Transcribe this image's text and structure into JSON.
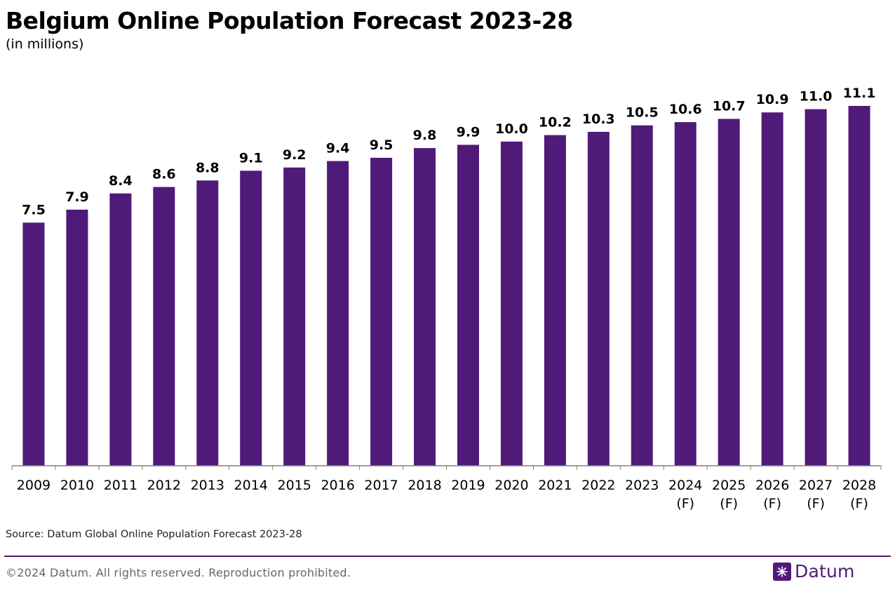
{
  "header": {
    "title": "Belgium Online Population Forecast 2023-28",
    "subtitle": "(in millions)"
  },
  "footer": {
    "source": "Source: Datum Global Online Population Forecast 2023-28",
    "copyright": "©2024 Datum. All rights reserved. Reproduction prohibited.",
    "logo_text": "Datum",
    "logo_icon": "datum-logo-icon"
  },
  "colors": {
    "bar": "#501A78",
    "accent": "#501A78"
  },
  "chart_data": {
    "type": "bar",
    "title": "Belgium Online Population Forecast 2023-28",
    "subtitle": "(in millions)",
    "xlabel": "",
    "ylabel": "",
    "grid": false,
    "ylim": [
      0,
      11.1
    ],
    "categories": [
      "2009",
      "2010",
      "2011",
      "2012",
      "2013",
      "2014",
      "2015",
      "2016",
      "2017",
      "2018",
      "2019",
      "2020",
      "2021",
      "2022",
      "2023",
      "2024\n(F)",
      "2025\n(F)",
      "2026\n(F)",
      "2027\n(F)",
      "2028\n(F)"
    ],
    "values": [
      7.5,
      7.9,
      8.4,
      8.6,
      8.8,
      9.1,
      9.2,
      9.4,
      9.5,
      9.8,
      9.9,
      10.0,
      10.2,
      10.3,
      10.5,
      10.6,
      10.7,
      10.9,
      11.0,
      11.1
    ],
    "value_labels": [
      "7.5",
      "7.9",
      "8.4",
      "8.6",
      "8.8",
      "9.1",
      "9.2",
      "9.4",
      "9.5",
      "9.8",
      "9.9",
      "10.0",
      "10.2",
      "10.3",
      "10.5",
      "10.6",
      "10.7",
      "10.9",
      "11.0",
      "11.1"
    ]
  }
}
